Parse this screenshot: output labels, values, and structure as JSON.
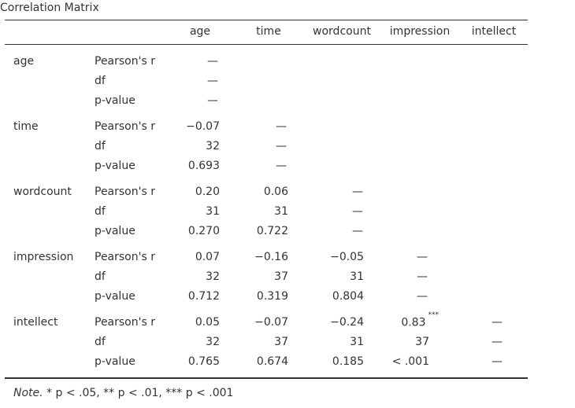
{
  "title": "Correlation Matrix",
  "columns": [
    "age",
    "time",
    "wordcount",
    "impression",
    "intellect"
  ],
  "stat_labels": [
    "Pearson's r",
    "df",
    "p-value"
  ],
  "rows": [
    {
      "var": "age",
      "cells": [
        [
          "—",
          "—",
          "—"
        ]
      ]
    },
    {
      "var": "time",
      "cells": [
        [
          "−0.07",
          "32",
          "0.693"
        ],
        [
          "—",
          "—",
          "—"
        ]
      ]
    },
    {
      "var": "wordcount",
      "cells": [
        [
          "0.20",
          "31",
          "0.270"
        ],
        [
          "0.06",
          "31",
          "0.722"
        ],
        [
          "—",
          "—",
          "—"
        ]
      ]
    },
    {
      "var": "impression",
      "cells": [
        [
          "0.07",
          "32",
          "0.712"
        ],
        [
          "−0.16",
          "37",
          "0.319"
        ],
        [
          "−0.05",
          "31",
          "0.804"
        ],
        [
          "—",
          "—",
          "—"
        ]
      ]
    },
    {
      "var": "intellect",
      "cells": [
        [
          "0.05",
          "32",
          "0.765"
        ],
        [
          "−0.07",
          "37",
          "0.674"
        ],
        [
          "−0.24",
          "31",
          "0.185"
        ],
        [
          "0.83",
          "37",
          "< .001"
        ],
        [
          "—",
          "—",
          "—"
        ]
      ]
    }
  ],
  "stars": {
    "intellect_impression": "***"
  },
  "note": {
    "label": "Note.",
    "text": " * p < .05, ** p < .01, *** p < .001"
  }
}
